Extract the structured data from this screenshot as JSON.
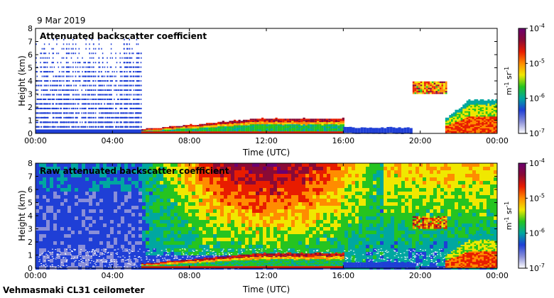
{
  "date": "9 Mar 2019",
  "footer": "Vehmasmaki CL31 ceilometer",
  "colorbar": {
    "colors": [
      "#ffffff",
      "#8a8fd8",
      "#1f3fd6",
      "#00a7a0",
      "#25c420",
      "#f0e800",
      "#ff8c00",
      "#e81c00",
      "#8a0a36",
      "#6b0070"
    ],
    "ticks": [
      {
        "base": "10",
        "exp": "-7",
        "value": 1e-07
      },
      {
        "base": "10",
        "exp": "-6",
        "value": 1e-06
      },
      {
        "base": "10",
        "exp": "-5",
        "value": 1e-05
      },
      {
        "base": "10",
        "exp": "-4",
        "value": 0.0001
      }
    ],
    "unit": {
      "m": "m",
      "m_exp": "-1",
      "sr": "sr",
      "sr_exp": "-1"
    }
  },
  "chart_data": [
    {
      "type": "heatmap",
      "title": "Attenuated backscatter coefficient",
      "xlabel": "Time (UTC)",
      "ylabel": "Height (km)",
      "xlim": [
        0,
        24
      ],
      "ylim": [
        0,
        8
      ],
      "xticks": [
        "00:00",
        "04:00",
        "08:00",
        "12:00",
        "16:00",
        "20:00",
        "00:00"
      ],
      "yticks": [
        "0",
        "1",
        "2",
        "3",
        "4",
        "5",
        "6",
        "7",
        "8"
      ],
      "zscale": "log",
      "zlim": [
        1e-07,
        0.0001
      ]
    },
    {
      "type": "heatmap",
      "title": "Raw attenuated backscatter coefficient",
      "xlabel": "Time (UTC)",
      "ylabel": "Height (km)",
      "xlim": [
        0,
        24
      ],
      "ylim": [
        0,
        8
      ],
      "xticks": [
        "00:00",
        "04:00",
        "08:00",
        "12:00",
        "16:00",
        "20:00",
        "00:00"
      ],
      "yticks": [
        "0",
        "1",
        "2",
        "3",
        "4",
        "5",
        "6",
        "7",
        "8"
      ],
      "zscale": "log",
      "zlim": [
        1e-07,
        0.0001
      ]
    }
  ]
}
